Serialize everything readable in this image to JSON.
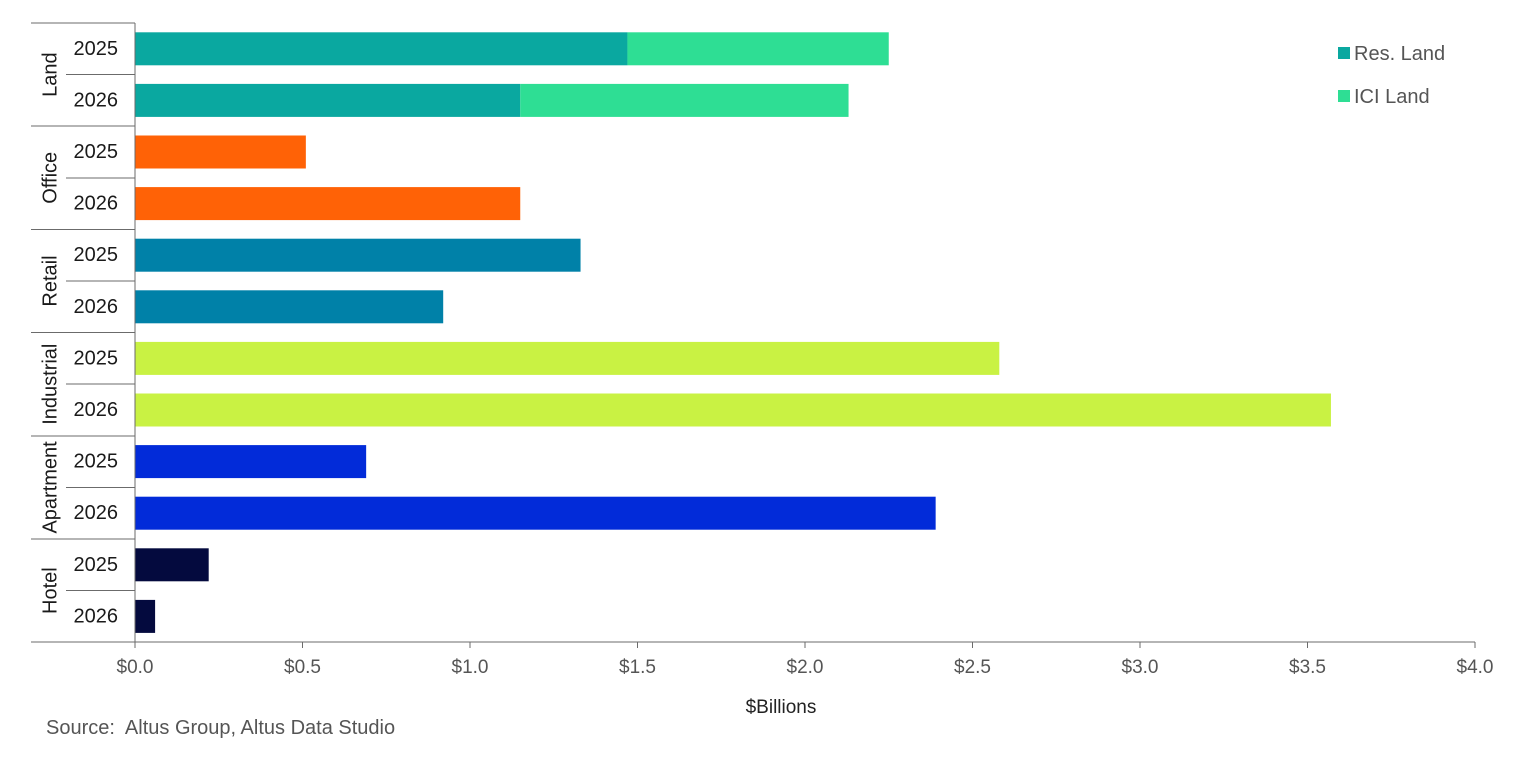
{
  "chart_data": {
    "type": "bar",
    "orientation": "horizontal",
    "stacked": true,
    "groups": [
      {
        "name": "Land",
        "rows": [
          {
            "year": "2025",
            "segments": [
              {
                "series": "Res. Land",
                "value": 1.47,
                "color": "#0AA8A0"
              },
              {
                "series": "ICI Land",
                "value": 0.78,
                "color": "#2EDE94"
              }
            ]
          },
          {
            "year": "2026",
            "segments": [
              {
                "series": "Res. Land",
                "value": 1.15,
                "color": "#0AA8A0"
              },
              {
                "series": "ICI Land",
                "value": 0.98,
                "color": "#2EDE94"
              }
            ]
          }
        ]
      },
      {
        "name": "Office",
        "rows": [
          {
            "year": "2025",
            "segments": [
              {
                "value": 0.51,
                "color": "#FF6206"
              }
            ]
          },
          {
            "year": "2026",
            "segments": [
              {
                "value": 1.15,
                "color": "#FF6206"
              }
            ]
          }
        ]
      },
      {
        "name": "Retail",
        "rows": [
          {
            "year": "2025",
            "segments": [
              {
                "value": 1.33,
                "color": "#0081A8"
              }
            ]
          },
          {
            "year": "2026",
            "segments": [
              {
                "value": 0.92,
                "color": "#0081A8"
              }
            ]
          }
        ]
      },
      {
        "name": "Industrial",
        "rows": [
          {
            "year": "2025",
            "segments": [
              {
                "value": 2.58,
                "color": "#C9F243"
              }
            ]
          },
          {
            "year": "2026",
            "segments": [
              {
                "value": 3.57,
                "color": "#C9F243"
              }
            ]
          }
        ]
      },
      {
        "name": "Apartment",
        "rows": [
          {
            "year": "2025",
            "segments": [
              {
                "value": 0.69,
                "color": "#022BD9"
              }
            ]
          },
          {
            "year": "2026",
            "segments": [
              {
                "value": 2.39,
                "color": "#022BD9"
              }
            ]
          }
        ]
      },
      {
        "name": "Hotel",
        "rows": [
          {
            "year": "2025",
            "segments": [
              {
                "value": 0.22,
                "color": "#040A3E"
              }
            ]
          },
          {
            "year": "2026",
            "segments": [
              {
                "value": 0.06,
                "color": "#040A3E"
              }
            ]
          }
        ]
      }
    ],
    "xlim": [
      0,
      4.0
    ],
    "xticks": [
      0,
      0.5,
      1.0,
      1.5,
      2.0,
      2.5,
      3.0,
      3.5,
      4.0
    ],
    "xtick_labels": [
      "$0.0",
      "$0.5",
      "$1.0",
      "$1.5",
      "$2.0",
      "$2.5",
      "$3.0",
      "$3.5",
      "$4.0"
    ],
    "xlabel": "$Billions",
    "legend": {
      "position": "top-right",
      "entries": [
        {
          "label": "Res. Land",
          "color": "#0AA8A0"
        },
        {
          "label": "ICI Land",
          "color": "#2EDE94"
        }
      ]
    },
    "grid": false,
    "source": "Source:  Altus Group, Altus Data Studio"
  }
}
